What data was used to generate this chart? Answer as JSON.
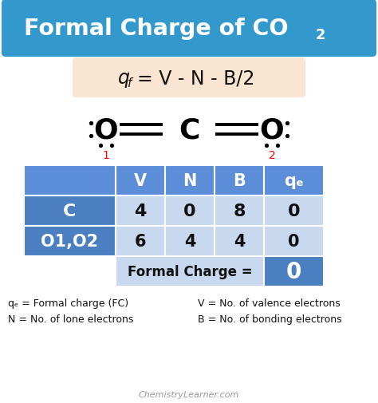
{
  "title_bg": "#3399CC",
  "title_text_color": "#FFFFFF",
  "formula_bg": "#FAE5D3",
  "bg_color": "#FFFFFF",
  "table_header_bg": "#5B8DD9",
  "table_row_bg": "#4A7FC1",
  "table_light_bg": "#C8D8EE",
  "table_footer_light": "#C8D8EE",
  "table_footer_dark": "#4A7FC1",
  "table_row1": [
    "C",
    "4",
    "0",
    "8",
    "0"
  ],
  "table_row2": [
    "O1,O2",
    "6",
    "4",
    "4",
    "0"
  ],
  "table_footer_label": "Formal Charge =",
  "table_footer_value": "0",
  "note_line1_left": "qₑ = Formal charge (FC)",
  "note_line1_right": "V = No. of valence electrons",
  "note_line2_left": "N = No. of lone electrons",
  "note_line2_right": "B = No. of bonding electrons",
  "watermark": "ChemistryLearner.com"
}
